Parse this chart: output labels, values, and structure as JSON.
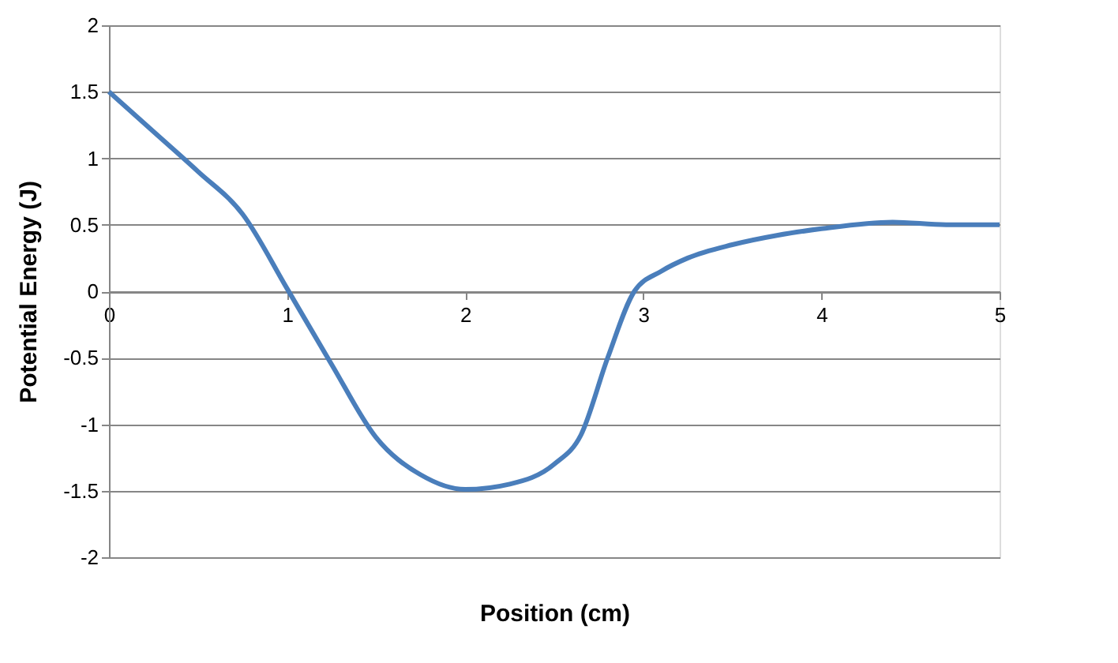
{
  "chart_data": {
    "type": "line",
    "xlabel": "Position (cm)",
    "ylabel": "Potential Energy (J)",
    "x": [
      0,
      0.25,
      0.5,
      0.75,
      1,
      1.25,
      1.5,
      1.75,
      2,
      2.25,
      2.5,
      2.65,
      2.8,
      2.95,
      3.1,
      3.25,
      3.5,
      3.75,
      4,
      4.4,
      4.7,
      5
    ],
    "series": [
      {
        "color": "#4a7ebb",
        "values": [
          1.5,
          1.2,
          0.9,
          0.58,
          0.02,
          -0.55,
          -1.1,
          -1.38,
          -1.49,
          -1.45,
          -1.3,
          -1.08,
          -0.5,
          0,
          0.15,
          0.25,
          0.35,
          0.42,
          0.47,
          0.52,
          0.5,
          0.5
        ]
      }
    ],
    "xlim": [
      0,
      5
    ],
    "xticks": [
      0,
      1,
      2,
      3,
      4,
      5
    ],
    "ylim": [
      -2,
      2
    ],
    "yticks": [
      -2,
      -1.5,
      -1,
      -0.5,
      0,
      0.5,
      1,
      1.5,
      2
    ],
    "grid": "y",
    "legend": false,
    "marker": "none",
    "line_style": "solid"
  }
}
